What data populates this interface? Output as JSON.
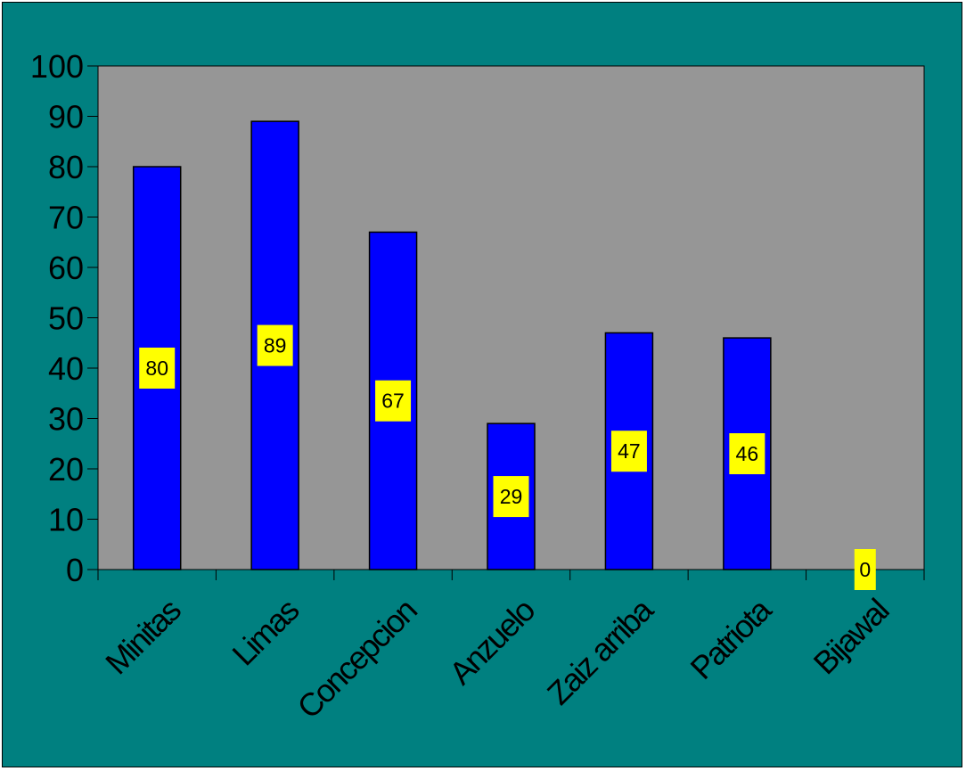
{
  "chart_data": {
    "type": "bar",
    "categories": [
      "Minitas",
      "Limas",
      "Concepcion",
      "Anzuelo",
      "Zaiz arriba",
      "Patriota",
      "Bijawal"
    ],
    "values": [
      80,
      89,
      67,
      29,
      47,
      46,
      0
    ],
    "data_labels": [
      "80",
      "89",
      "67",
      "29",
      "47",
      "46",
      "0"
    ],
    "title": "",
    "xlabel": "",
    "ylabel": "",
    "ylim": [
      0,
      100
    ],
    "yticks": [
      "0",
      "10",
      "20",
      "30",
      "40",
      "50",
      "60",
      "70",
      "80",
      "90",
      "100"
    ],
    "grid": false,
    "legend": "none",
    "colors": {
      "background": "#008080",
      "plot_area": "#969696",
      "bar": "#0000ff",
      "data_label_box": "#ffff00"
    }
  }
}
